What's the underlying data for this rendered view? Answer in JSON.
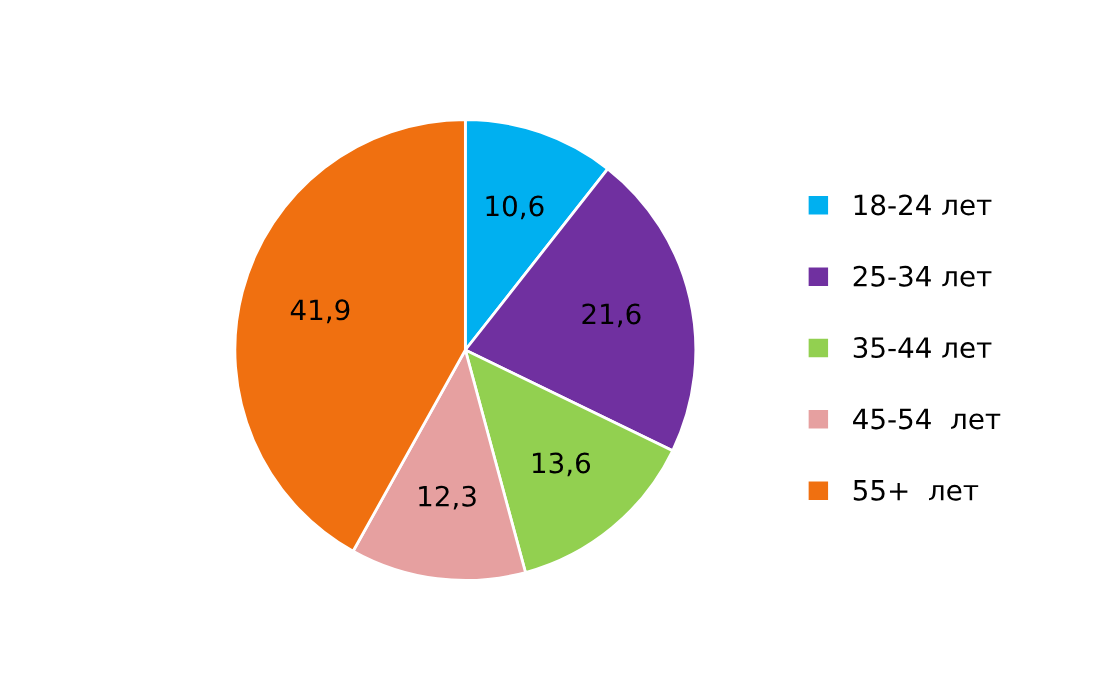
{
  "chart_data": {
    "type": "pie",
    "categories": [
      "18-24 лет",
      "25-34 лет",
      "35-44 лет",
      "45-54  лет",
      "55+  лет"
    ],
    "values": [
      10.6,
      21.6,
      13.6,
      12.3,
      41.9
    ],
    "value_labels": [
      "10,6",
      "21,6",
      "13,6",
      "12,3",
      "41,9"
    ],
    "colors": [
      "#00b0f0",
      "#7030a0",
      "#92d050",
      "#e6a0a0",
      "#f07010"
    ],
    "legend": "right"
  }
}
